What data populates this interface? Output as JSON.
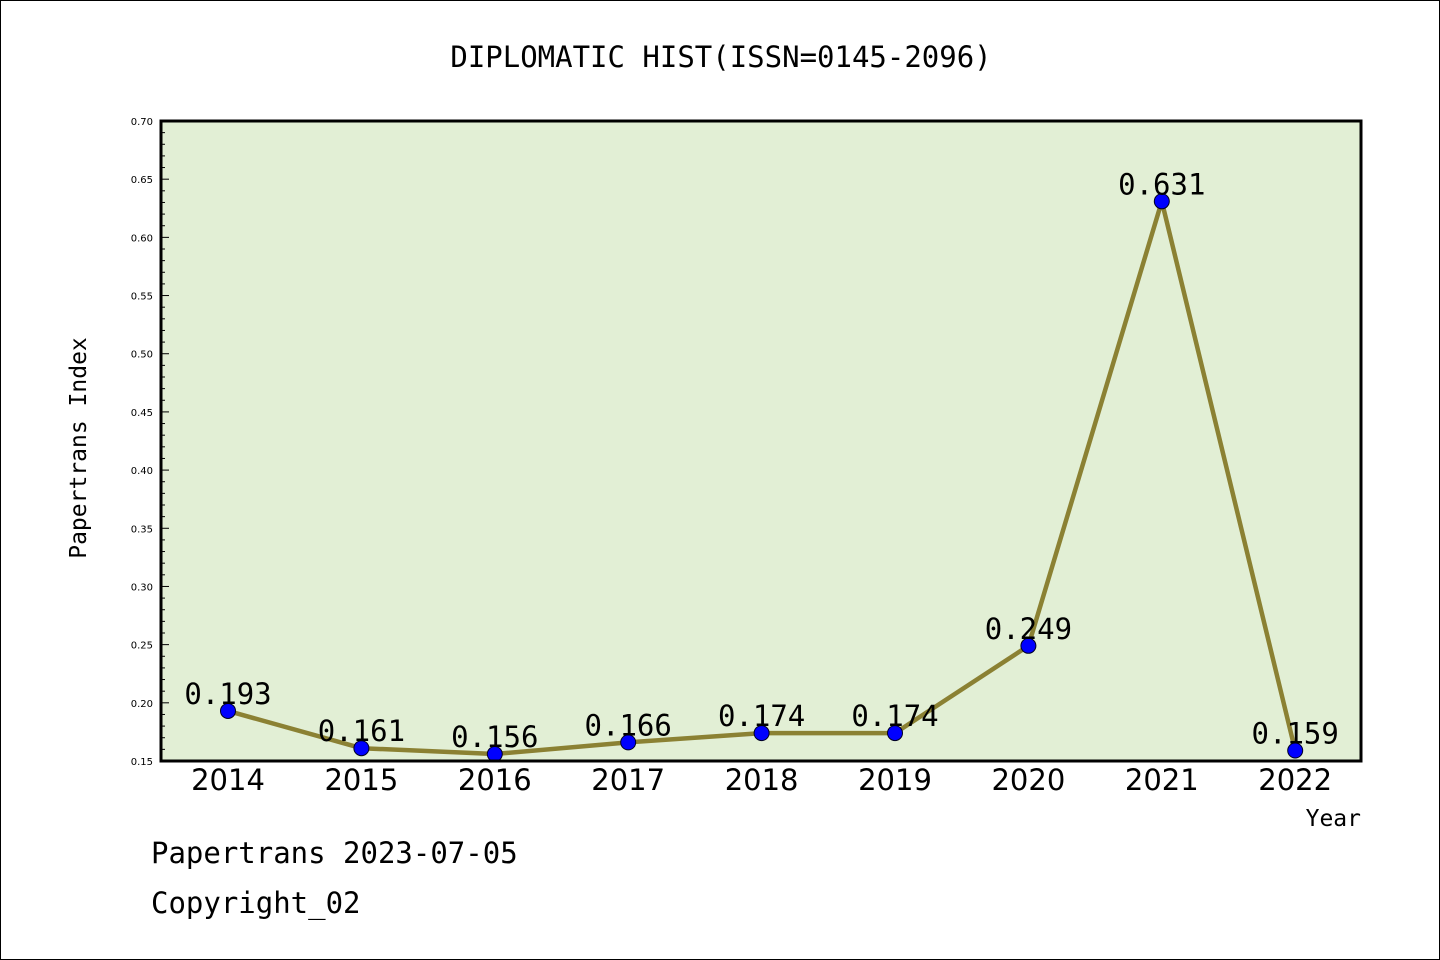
{
  "footer": {
    "date_text": "Papertrans 2023-07-05",
    "copyright_text": "Copyright_02"
  },
  "colors": {
    "background": "#ffffff",
    "plot_background": "#e2efd5",
    "line": "#8b8133",
    "marker": "#0000ff"
  },
  "chart_data": {
    "type": "line",
    "title": "DIPLOMATIC HIST(ISSN=0145-2096)",
    "xlabel": "Year",
    "ylabel": "Papertrans Index",
    "categories": [
      "2014",
      "2015",
      "2016",
      "2017",
      "2018",
      "2019",
      "2020",
      "2021",
      "2022"
    ],
    "series": [
      {
        "values": [
          0.193,
          0.161,
          0.156,
          0.166,
          0.174,
          0.174,
          0.249,
          0.631,
          0.159
        ],
        "labels": [
          "0.193",
          "0.161",
          "0.156",
          "0.166",
          "0.174",
          "0.174",
          "0.249",
          "0.631",
          "0.159"
        ]
      }
    ],
    "ylim": [
      0.15,
      0.7
    ],
    "yticks": [
      "0.15",
      "0.20",
      "0.25",
      "0.30",
      "0.35",
      "0.40",
      "0.45",
      "0.50",
      "0.55",
      "0.60",
      "0.65",
      "0.70"
    ],
    "grid": false,
    "legend": "none"
  }
}
